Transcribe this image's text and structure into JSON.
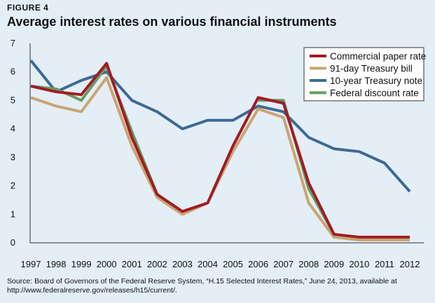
{
  "figure_label": "FIGURE 4",
  "source_text": "Source: Board of Governors of the Federal Reserve System, “H.15 Selected Interest Rates,” June 24, 2013, available at http://www.federalreserve.gov/releases/h15/current/.",
  "chart_data": {
    "type": "line",
    "title": "Average interest rates on various financial instruments",
    "xlabel": "",
    "ylabel": "",
    "ylim": [
      0,
      7
    ],
    "yticks": [
      0,
      1,
      2,
      3,
      4,
      5,
      6,
      7
    ],
    "x": [
      "1997",
      "1998",
      "1999",
      "2000",
      "2001",
      "2002",
      "2003",
      "2004",
      "2005",
      "2006",
      "2007",
      "2008",
      "2009",
      "2010",
      "2011",
      "2012"
    ],
    "grid": false,
    "legend": "top-right",
    "series": [
      {
        "name": "Commercial paper rate",
        "color": "#a01c24",
        "values": [
          5.5,
          5.3,
          5.2,
          6.3,
          3.7,
          1.7,
          1.1,
          1.4,
          3.4,
          5.1,
          4.9,
          2.1,
          0.3,
          0.2,
          0.2,
          0.2
        ]
      },
      {
        "name": "91-day Treasury bill",
        "color": "#caa472",
        "values": [
          5.1,
          4.8,
          4.6,
          5.8,
          3.4,
          1.6,
          1.0,
          1.4,
          3.2,
          4.7,
          4.4,
          1.4,
          0.2,
          0.1,
          0.1,
          0.1
        ]
      },
      {
        "name": "10-year Treasury note",
        "color": "#3d6a96",
        "values": [
          6.4,
          5.3,
          5.7,
          6.0,
          5.0,
          4.6,
          4.0,
          4.3,
          4.3,
          4.8,
          4.6,
          3.7,
          3.3,
          3.2,
          2.8,
          1.8
        ]
      },
      {
        "name": "Federal discount rate",
        "color": "#6b9a62",
        "values": [
          5.5,
          5.4,
          5.0,
          6.2,
          3.9,
          1.7,
          null,
          null,
          null,
          5.0,
          5.0,
          1.9,
          0.3,
          null,
          null,
          null
        ]
      }
    ]
  }
}
